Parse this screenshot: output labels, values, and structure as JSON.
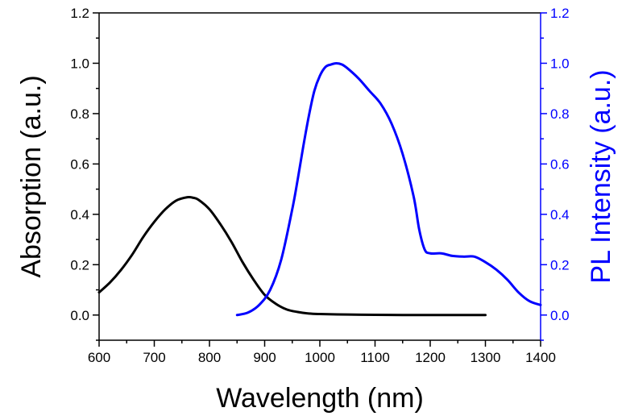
{
  "chart_data": {
    "type": "line",
    "xlabel": "Wavelength (nm)",
    "ylabel_left": "Absorption (a.u.)",
    "ylabel_right": "PL Intensity (a.u.)",
    "xlim": [
      600,
      1400
    ],
    "ylim_left": [
      -0.1,
      1.2
    ],
    "ylim_right": [
      -0.1,
      1.2
    ],
    "x_ticks": [
      600,
      700,
      800,
      900,
      1000,
      1100,
      1200,
      1300,
      1400
    ],
    "y_ticks_left": [
      "0.0",
      "0.2",
      "0.4",
      "0.6",
      "0.8",
      "1.0",
      "1.2"
    ],
    "y_ticks_right": [
      "0.0",
      "0.2",
      "0.4",
      "0.6",
      "0.8",
      "1.0",
      "1.2"
    ],
    "grid": false,
    "colors": {
      "left_axis": "#000000",
      "right_axis": "#0000ff"
    },
    "series": [
      {
        "axis": "left",
        "color": "#000000",
        "x": [
          600,
          620,
          640,
          660,
          680,
          700,
          720,
          740,
          760,
          770,
          780,
          800,
          820,
          840,
          860,
          880,
          900,
          920,
          940,
          960,
          980,
          1000,
          1050,
          1100,
          1150,
          1200,
          1250,
          1300
        ],
        "y": [
          0.09,
          0.13,
          0.18,
          0.24,
          0.31,
          0.37,
          0.42,
          0.455,
          0.468,
          0.466,
          0.458,
          0.42,
          0.36,
          0.29,
          0.21,
          0.14,
          0.08,
          0.045,
          0.022,
          0.012,
          0.006,
          0.004,
          0.002,
          0.001,
          0.0,
          0.0,
          0.0,
          0.0
        ]
      },
      {
        "axis": "right",
        "color": "#0000ff",
        "x": [
          850,
          870,
          890,
          910,
          930,
          950,
          960,
          970,
          980,
          990,
          1000,
          1010,
          1020,
          1030,
          1040,
          1050,
          1070,
          1090,
          1110,
          1130,
          1150,
          1170,
          1180,
          1190,
          1200,
          1220,
          1240,
          1260,
          1280,
          1300,
          1320,
          1340,
          1360,
          1380,
          1400
        ],
        "y": [
          0.0,
          0.01,
          0.04,
          0.1,
          0.22,
          0.42,
          0.54,
          0.67,
          0.79,
          0.89,
          0.95,
          0.985,
          0.995,
          1.0,
          0.995,
          0.98,
          0.94,
          0.89,
          0.84,
          0.76,
          0.64,
          0.47,
          0.34,
          0.26,
          0.245,
          0.245,
          0.235,
          0.232,
          0.232,
          0.21,
          0.18,
          0.14,
          0.09,
          0.055,
          0.04
        ]
      }
    ]
  }
}
